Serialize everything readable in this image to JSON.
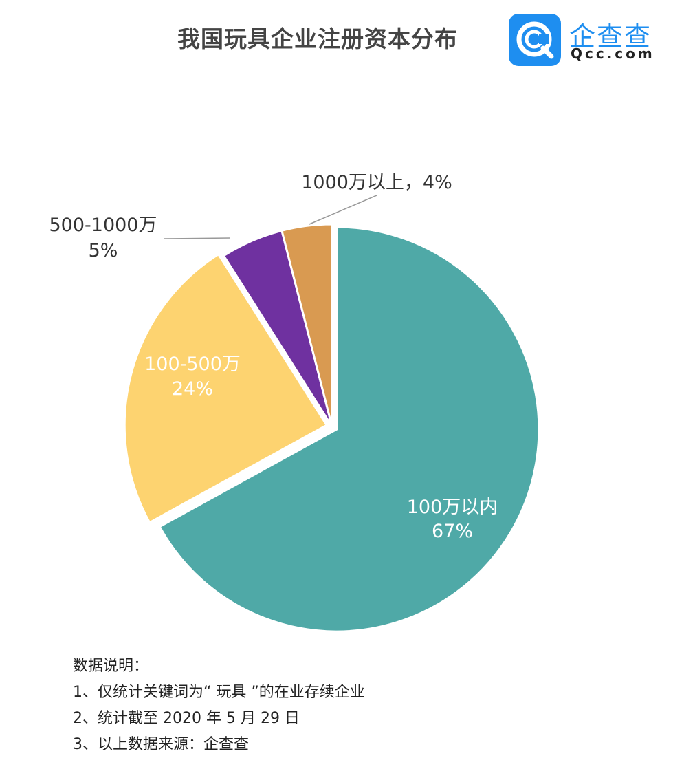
{
  "header": {
    "title": "我国玩具企业注册资本分布",
    "logo_cn": "企查查",
    "logo_en": "Qcc.com"
  },
  "chart_data": {
    "type": "pie",
    "title": "我国玩具企业注册资本分布",
    "slices": [
      {
        "label": "100万以内",
        "value": 67,
        "display": "67%",
        "color": "#4fa9a7",
        "label_color": "#ffffff"
      },
      {
        "label": "100-500万",
        "value": 24,
        "display": "24%",
        "color": "#fdd370",
        "label_color": "#ffffff"
      },
      {
        "label": "500-1000万",
        "value": 5,
        "display": "5%",
        "color": "#6f31a0",
        "label_color": "#333333"
      },
      {
        "label": "1000万以上",
        "value": 4,
        "display": "4%",
        "color": "#d99a51",
        "label_color": "#333333"
      }
    ]
  },
  "notes": {
    "heading": "数据说明：",
    "items": [
      "1、仅统计关键词为“ 玩具 ”的在业存续企业",
      "2、统计截至 2020 年 5 月 29 日",
      "3、以上数据来源：企查查"
    ]
  }
}
